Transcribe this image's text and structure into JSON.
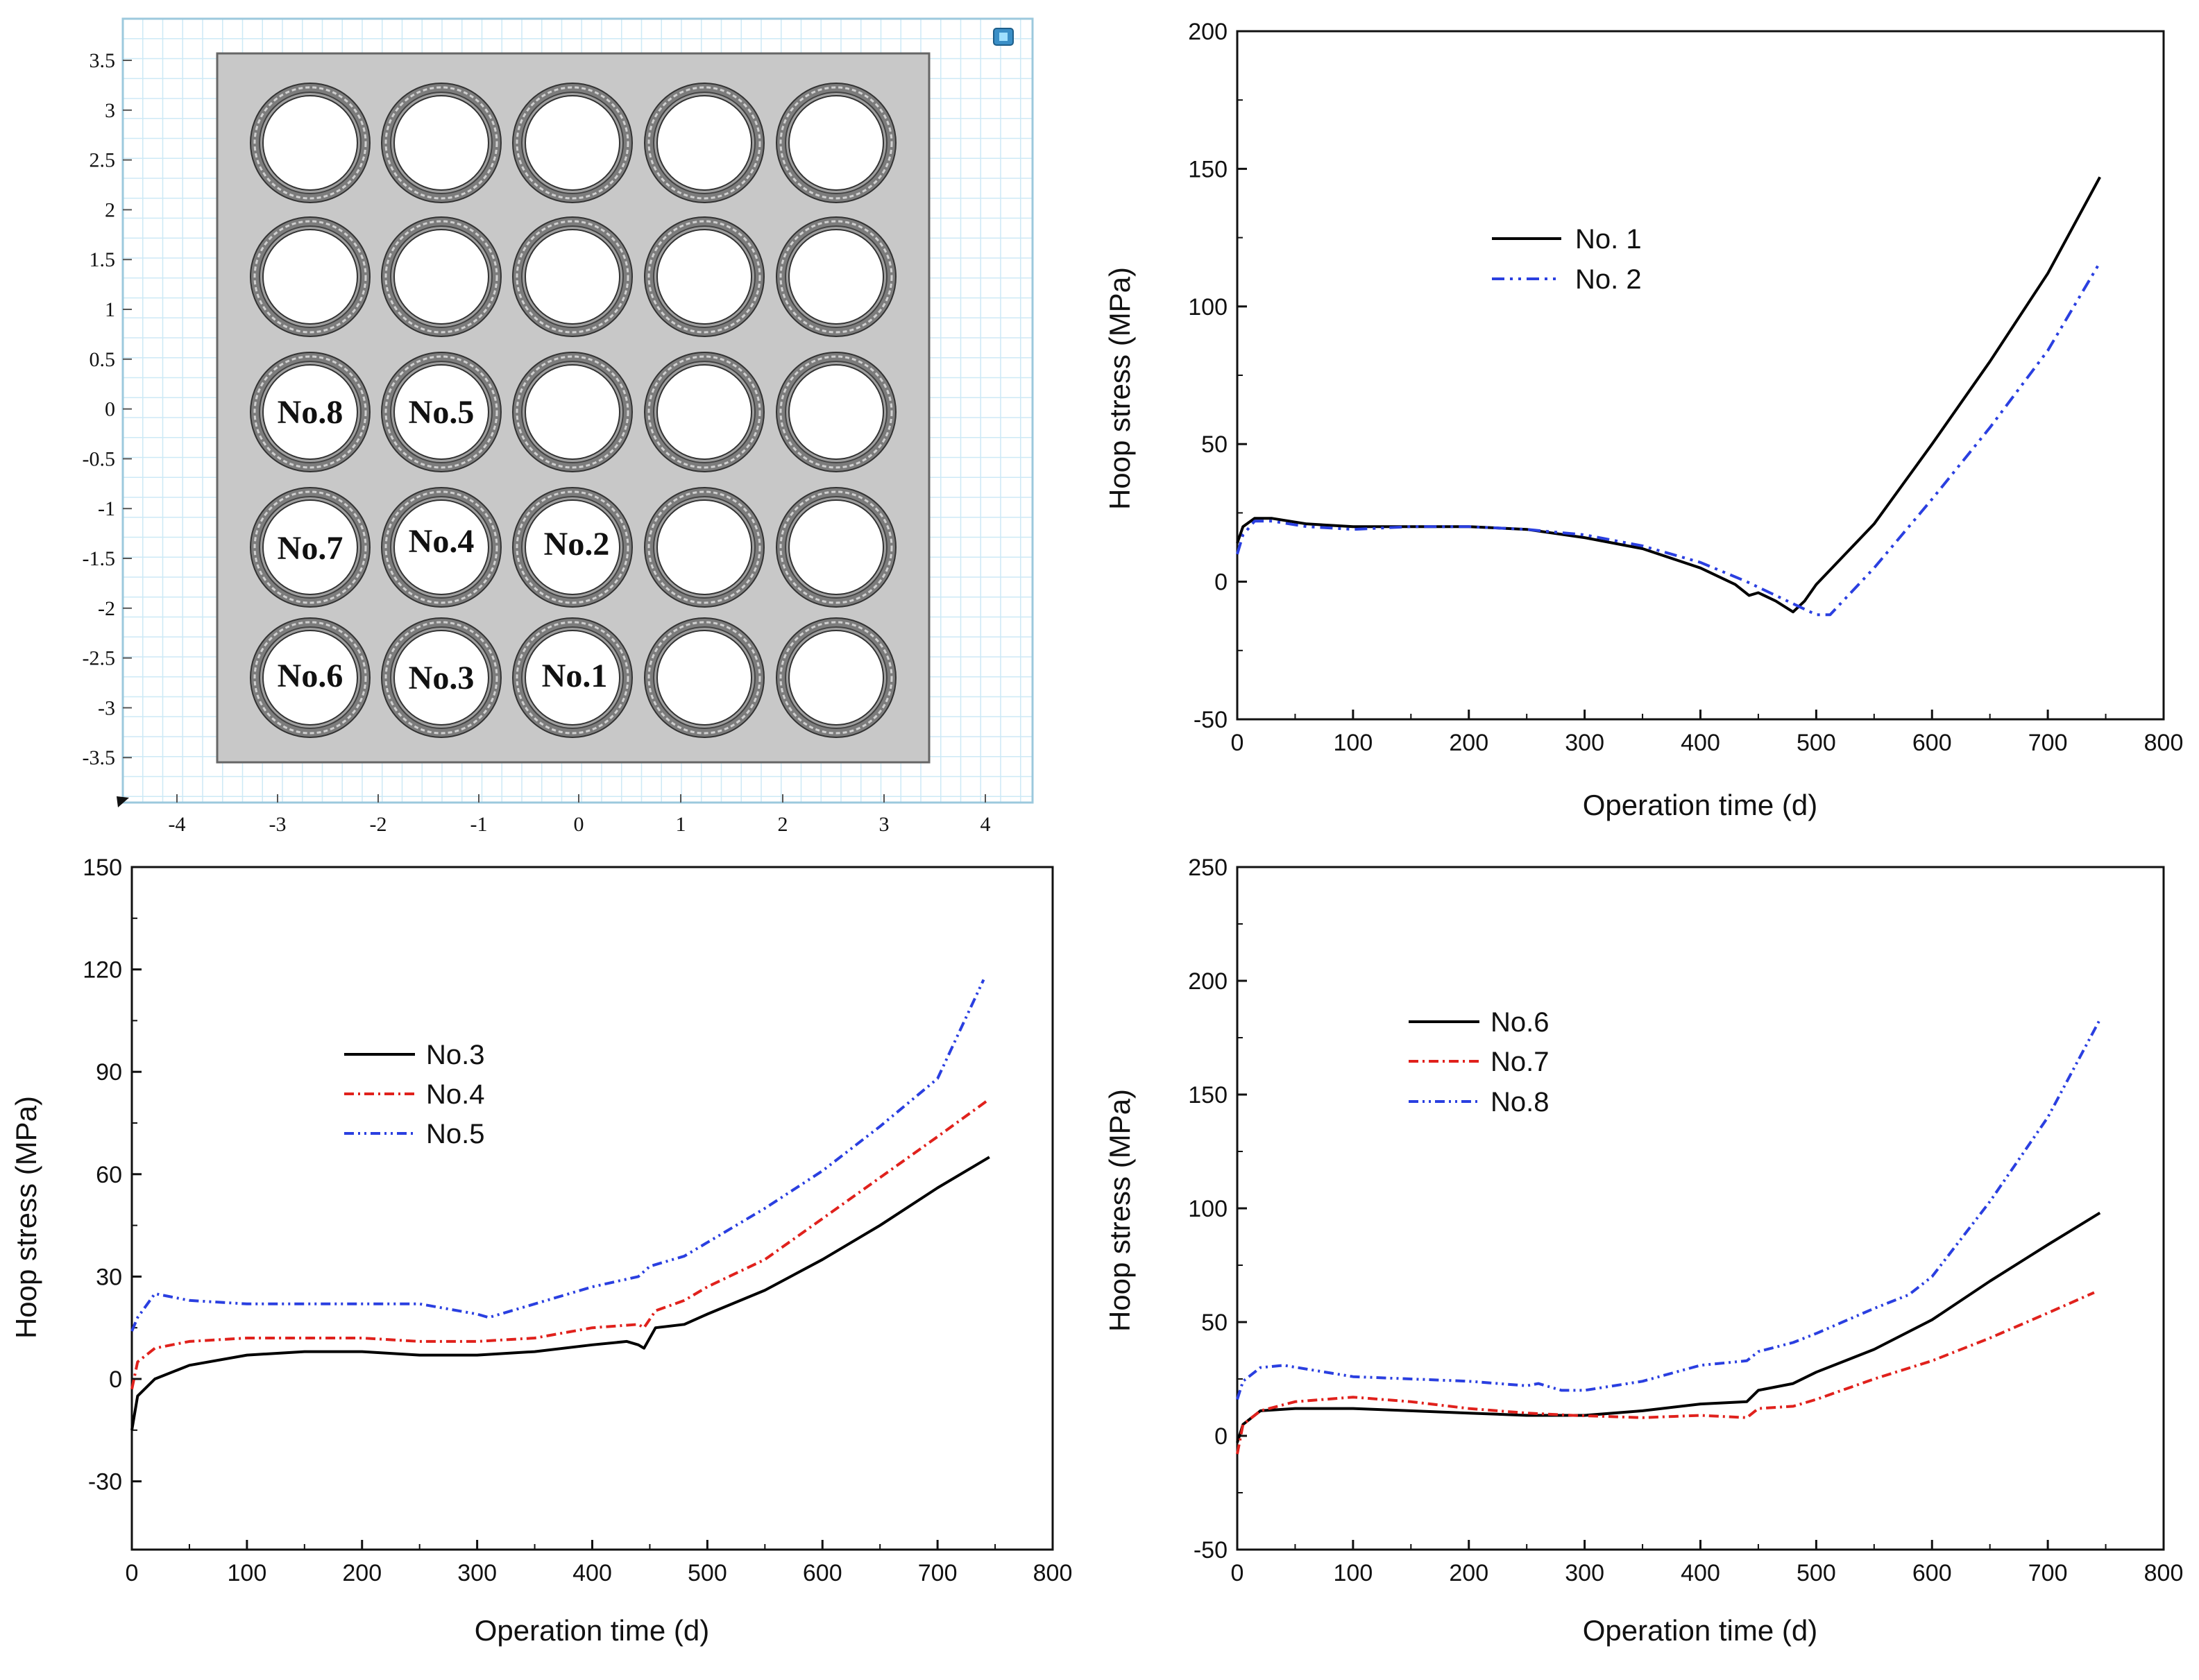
{
  "colors": {
    "black": "#000000",
    "red": "#e0211c",
    "blue": "#2a3fe0",
    "plate": "#c8c8c8",
    "grid": "#bfe3f5"
  },
  "geometry_plot": {
    "x_ticks": [
      "-4",
      "-3",
      "-2",
      "-1",
      "0",
      "1",
      "2",
      "3",
      "4"
    ],
    "y_ticks": [
      "3.5",
      "3",
      "2.5",
      "2",
      "1.5",
      "1",
      "0.5",
      "0",
      "-0.5",
      "-1",
      "-1.5",
      "-2",
      "-2.5",
      "-3",
      "-3.5"
    ],
    "icon": "view-cube-icon",
    "labels": [
      "No.8",
      "No.5",
      "No.7",
      "No.4",
      "No.2",
      "No.6",
      "No.3",
      "No.1"
    ]
  },
  "chart_data": [
    {
      "id": "chart1",
      "type": "line",
      "title": "",
      "xlabel": "Operation time (d)",
      "ylabel": "Hoop stress (MPa)",
      "xlim": [
        0,
        800
      ],
      "ylim": [
        -50,
        200
      ],
      "xticks": [
        0,
        100,
        200,
        300,
        400,
        500,
        600,
        700,
        800
      ],
      "yticks": [
        -50,
        0,
        50,
        100,
        150,
        200
      ],
      "legend": [
        {
          "name": "No. 1"
        },
        {
          "name": "No. 2"
        }
      ],
      "series": [
        {
          "name": "No. 1",
          "color": "#000000",
          "dash": "",
          "points": [
            [
              0,
              14
            ],
            [
              5,
              20
            ],
            [
              15,
              23
            ],
            [
              30,
              23
            ],
            [
              60,
              21
            ],
            [
              100,
              20
            ],
            [
              150,
              20
            ],
            [
              200,
              20
            ],
            [
              250,
              19
            ],
            [
              300,
              16
            ],
            [
              350,
              12
            ],
            [
              400,
              5
            ],
            [
              430,
              -1
            ],
            [
              442,
              -5
            ],
            [
              450,
              -4
            ],
            [
              465,
              -7
            ],
            [
              480,
              -11
            ],
            [
              490,
              -7
            ],
            [
              500,
              -1
            ],
            [
              550,
              21
            ],
            [
              600,
              50
            ],
            [
              650,
              80
            ],
            [
              700,
              112
            ],
            [
              745,
              147
            ]
          ]
        },
        {
          "name": "No. 2",
          "color": "#2a3fe0",
          "dash": "18,8,4,8,4,8",
          "points": [
            [
              0,
              10
            ],
            [
              5,
              17
            ],
            [
              15,
              22
            ],
            [
              30,
              22
            ],
            [
              60,
              20
            ],
            [
              100,
              19
            ],
            [
              150,
              20
            ],
            [
              200,
              20
            ],
            [
              250,
              19
            ],
            [
              300,
              17
            ],
            [
              350,
              13
            ],
            [
              400,
              7
            ],
            [
              440,
              0
            ],
            [
              460,
              -4
            ],
            [
              480,
              -8
            ],
            [
              500,
              -12
            ],
            [
              512,
              -12
            ],
            [
              550,
              5
            ],
            [
              600,
              30
            ],
            [
              650,
              56
            ],
            [
              700,
              84
            ],
            [
              745,
              116
            ]
          ]
        }
      ]
    },
    {
      "id": "chart2",
      "type": "line",
      "title": "",
      "xlabel": "Operation time (d)",
      "ylabel": "Hoop stress (MPa)",
      "xlim": [
        0,
        800
      ],
      "ylim": [
        -50,
        150
      ],
      "xticks": [
        0,
        100,
        200,
        300,
        400,
        500,
        600,
        700,
        800
      ],
      "yticks": [
        -30,
        0,
        30,
        60,
        90,
        120,
        150
      ],
      "legend": [
        {
          "name": "No.3"
        },
        {
          "name": "No.4"
        },
        {
          "name": "No.5"
        }
      ],
      "series": [
        {
          "name": "No.3",
          "color": "#000000",
          "dash": "",
          "points": [
            [
              0,
              -15
            ],
            [
              5,
              -5
            ],
            [
              20,
              0
            ],
            [
              50,
              4
            ],
            [
              100,
              7
            ],
            [
              150,
              8
            ],
            [
              200,
              8
            ],
            [
              250,
              7
            ],
            [
              300,
              7
            ],
            [
              350,
              8
            ],
            [
              400,
              10
            ],
            [
              430,
              11
            ],
            [
              440,
              10
            ],
            [
              445,
              9
            ],
            [
              455,
              15
            ],
            [
              480,
              16
            ],
            [
              500,
              19
            ],
            [
              550,
              26
            ],
            [
              600,
              35
            ],
            [
              650,
              45
            ],
            [
              700,
              56
            ],
            [
              745,
              65
            ]
          ]
        },
        {
          "name": "No.4",
          "color": "#e0211c",
          "dash": "14,6,3,6",
          "points": [
            [
              0,
              -3
            ],
            [
              5,
              5
            ],
            [
              20,
              9
            ],
            [
              50,
              11
            ],
            [
              100,
              12
            ],
            [
              150,
              12
            ],
            [
              200,
              12
            ],
            [
              250,
              11
            ],
            [
              300,
              11
            ],
            [
              350,
              12
            ],
            [
              400,
              15
            ],
            [
              440,
              16
            ],
            [
              445,
              15
            ],
            [
              455,
              20
            ],
            [
              480,
              23
            ],
            [
              500,
              27
            ],
            [
              550,
              35
            ],
            [
              600,
              47
            ],
            [
              650,
              59
            ],
            [
              700,
              71
            ],
            [
              745,
              82
            ]
          ]
        },
        {
          "name": "No.5",
          "color": "#2a3fe0",
          "dash": "14,6,3,6,3,6",
          "points": [
            [
              0,
              14
            ],
            [
              5,
              18
            ],
            [
              20,
              25
            ],
            [
              50,
              23
            ],
            [
              100,
              22
            ],
            [
              150,
              22
            ],
            [
              200,
              22
            ],
            [
              250,
              22
            ],
            [
              300,
              19
            ],
            [
              310,
              18
            ],
            [
              350,
              22
            ],
            [
              400,
              27
            ],
            [
              440,
              30
            ],
            [
              450,
              33
            ],
            [
              480,
              36
            ],
            [
              500,
              40
            ],
            [
              550,
              50
            ],
            [
              600,
              61
            ],
            [
              650,
              74
            ],
            [
              700,
              88
            ],
            [
              740,
              117
            ]
          ]
        }
      ]
    },
    {
      "id": "chart3",
      "type": "line",
      "title": "",
      "xlabel": "Operation time (d)",
      "ylabel": "Hoop stress (MPa)",
      "xlim": [
        0,
        800
      ],
      "ylim": [
        -50,
        250
      ],
      "xticks": [
        0,
        100,
        200,
        300,
        400,
        500,
        600,
        700,
        800
      ],
      "yticks": [
        -50,
        0,
        50,
        100,
        150,
        200,
        250
      ],
      "legend": [
        {
          "name": "No.6"
        },
        {
          "name": "No.7"
        },
        {
          "name": "No.8"
        }
      ],
      "series": [
        {
          "name": "No.6",
          "color": "#000000",
          "dash": "",
          "points": [
            [
              0,
              -3
            ],
            [
              5,
              5
            ],
            [
              20,
              11
            ],
            [
              50,
              12
            ],
            [
              100,
              12
            ],
            [
              150,
              11
            ],
            [
              200,
              10
            ],
            [
              250,
              9
            ],
            [
              300,
              9
            ],
            [
              350,
              11
            ],
            [
              400,
              14
            ],
            [
              440,
              15
            ],
            [
              450,
              20
            ],
            [
              480,
              23
            ],
            [
              500,
              28
            ],
            [
              550,
              38
            ],
            [
              600,
              51
            ],
            [
              650,
              68
            ],
            [
              700,
              84
            ],
            [
              745,
              98
            ]
          ]
        },
        {
          "name": "No.7",
          "color": "#e0211c",
          "dash": "14,6,3,6",
          "points": [
            [
              0,
              -8
            ],
            [
              5,
              5
            ],
            [
              20,
              11
            ],
            [
              50,
              15
            ],
            [
              100,
              17
            ],
            [
              150,
              15
            ],
            [
              200,
              12
            ],
            [
              250,
              10
            ],
            [
              290,
              9
            ],
            [
              350,
              8
            ],
            [
              400,
              9
            ],
            [
              440,
              8
            ],
            [
              450,
              12
            ],
            [
              480,
              13
            ],
            [
              500,
              16
            ],
            [
              550,
              25
            ],
            [
              600,
              33
            ],
            [
              650,
              43
            ],
            [
              700,
              54
            ],
            [
              740,
              63
            ]
          ]
        },
        {
          "name": "No.8",
          "color": "#2a3fe0",
          "dash": "14,6,3,6,3,6",
          "points": [
            [
              0,
              16
            ],
            [
              5,
              24
            ],
            [
              20,
              30
            ],
            [
              40,
              31
            ],
            [
              100,
              26
            ],
            [
              150,
              25
            ],
            [
              200,
              24
            ],
            [
              250,
              22
            ],
            [
              260,
              23
            ],
            [
              280,
              20
            ],
            [
              300,
              20
            ],
            [
              350,
              24
            ],
            [
              400,
              31
            ],
            [
              440,
              33
            ],
            [
              450,
              37
            ],
            [
              480,
              41
            ],
            [
              500,
              45
            ],
            [
              550,
              56
            ],
            [
              580,
              62
            ],
            [
              600,
              70
            ],
            [
              650,
              103
            ],
            [
              700,
              140
            ],
            [
              745,
              183
            ]
          ]
        }
      ]
    }
  ]
}
